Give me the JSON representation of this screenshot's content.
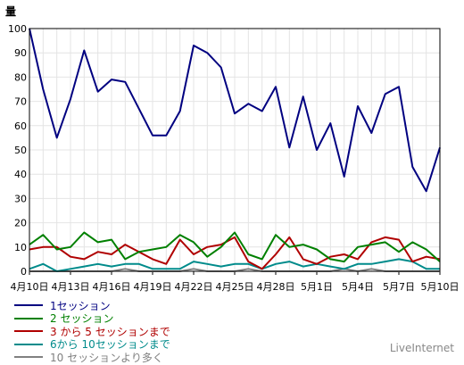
{
  "chart_data": {
    "type": "line",
    "ylabel": "量",
    "ylim": [
      0,
      100
    ],
    "yticks": [
      0,
      10,
      20,
      30,
      40,
      50,
      60,
      70,
      80,
      90,
      100
    ],
    "grid": true,
    "legend_position": "bottom-left",
    "x": [
      "4月10日",
      "4月11日",
      "4月12日",
      "4月13日",
      "4月14日",
      "4月15日",
      "4月16日",
      "4月17日",
      "4月18日",
      "4月19日",
      "4月20日",
      "4月21日",
      "4月22日",
      "4月23日",
      "4月24日",
      "4月25日",
      "4月26日",
      "4月27日",
      "4月28日",
      "4月29日",
      "4月30日",
      "5月1日",
      "5月2日",
      "5月3日",
      "5月4日",
      "5月5日",
      "5月6日",
      "5月7日",
      "5月8日",
      "5月9日",
      "5月10日"
    ],
    "xticks": [
      "4月10日",
      "4月13日",
      "4月16日",
      "4月19日",
      "4月22日",
      "4月25日",
      "4月28日",
      "5月1日",
      "5月4日",
      "5月7日",
      "5月10日"
    ],
    "series": [
      {
        "name": "1セッション",
        "color": "#000080",
        "values": [
          100,
          75,
          55,
          71,
          91,
          74,
          79,
          78,
          67,
          56,
          56,
          66,
          93,
          90,
          84,
          65,
          69,
          66,
          76,
          51,
          72,
          50,
          61,
          39,
          68,
          57,
          73,
          76,
          43,
          33,
          51
        ]
      },
      {
        "name": "2 セッション",
        "color": "#008000",
        "values": [
          11,
          15,
          9,
          10,
          16,
          12,
          13,
          5,
          8,
          9,
          10,
          15,
          12,
          6,
          10,
          16,
          7,
          5,
          15,
          10,
          11,
          9,
          5,
          4,
          10,
          11,
          12,
          8,
          12,
          9,
          4
        ]
      },
      {
        "name": "3 から 5 セッションまで",
        "color": "#b00000",
        "values": [
          9,
          10,
          10,
          6,
          5,
          8,
          7,
          11,
          8,
          5,
          3,
          13,
          7,
          10,
          11,
          14,
          4,
          1,
          7,
          14,
          5,
          3,
          6,
          7,
          5,
          12,
          14,
          13,
          4,
          6,
          5
        ]
      },
      {
        "name": "6から 10セッションまで",
        "color": "#008b8b",
        "values": [
          1,
          3,
          0,
          1,
          2,
          3,
          2,
          3,
          3,
          1,
          1,
          1,
          4,
          3,
          2,
          3,
          3,
          1,
          3,
          4,
          2,
          3,
          2,
          1,
          3,
          3,
          4,
          5,
          4,
          1,
          1
        ]
      },
      {
        "name": "10 セッションより多く",
        "color": "#808080",
        "values": [
          0,
          0,
          0,
          0,
          0,
          0,
          0,
          1,
          0,
          0,
          0,
          0,
          1,
          0,
          0,
          0,
          1,
          0,
          0,
          0,
          0,
          0,
          0,
          1,
          0,
          1,
          0,
          0,
          0,
          0,
          0
        ]
      }
    ]
  },
  "brand": "LiveInternet"
}
